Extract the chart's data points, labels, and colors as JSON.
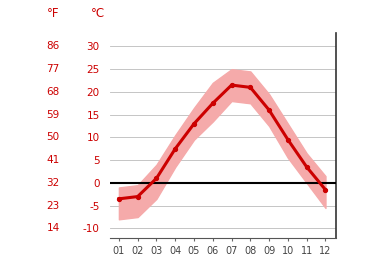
{
  "months": [
    1,
    2,
    3,
    4,
    5,
    6,
    7,
    8,
    9,
    10,
    11,
    12
  ],
  "month_labels": [
    "01",
    "02",
    "03",
    "04",
    "05",
    "06",
    "07",
    "08",
    "09",
    "10",
    "11",
    "12"
  ],
  "temp_mean": [
    -3.5,
    -3.0,
    1.0,
    7.5,
    13.0,
    17.5,
    21.5,
    21.0,
    16.0,
    9.5,
    3.5,
    -1.5
  ],
  "temp_max": [
    -1.0,
    -0.5,
    4.0,
    10.5,
    16.5,
    22.0,
    25.0,
    24.5,
    19.5,
    13.0,
    6.5,
    1.5
  ],
  "temp_min": [
    -8.0,
    -7.5,
    -3.5,
    3.5,
    9.5,
    13.5,
    18.0,
    17.5,
    12.5,
    5.5,
    0.0,
    -5.5
  ],
  "celsius_ticks": [
    -10,
    -5,
    0,
    5,
    10,
    15,
    20,
    25,
    30
  ],
  "fahrenheit_ticks": [
    14,
    23,
    32,
    41,
    50,
    59,
    68,
    77,
    86
  ],
  "ylim": [
    -12,
    33
  ],
  "xlim": [
    0.5,
    12.55
  ],
  "line_color": "#cc0000",
  "fill_color": "#f5aaaa",
  "zero_line_color": "#000000",
  "grid_color": "#bbbbbb",
  "label_color": "#cc0000",
  "tick_label_color": "#444444",
  "bg_color": "#ffffff"
}
